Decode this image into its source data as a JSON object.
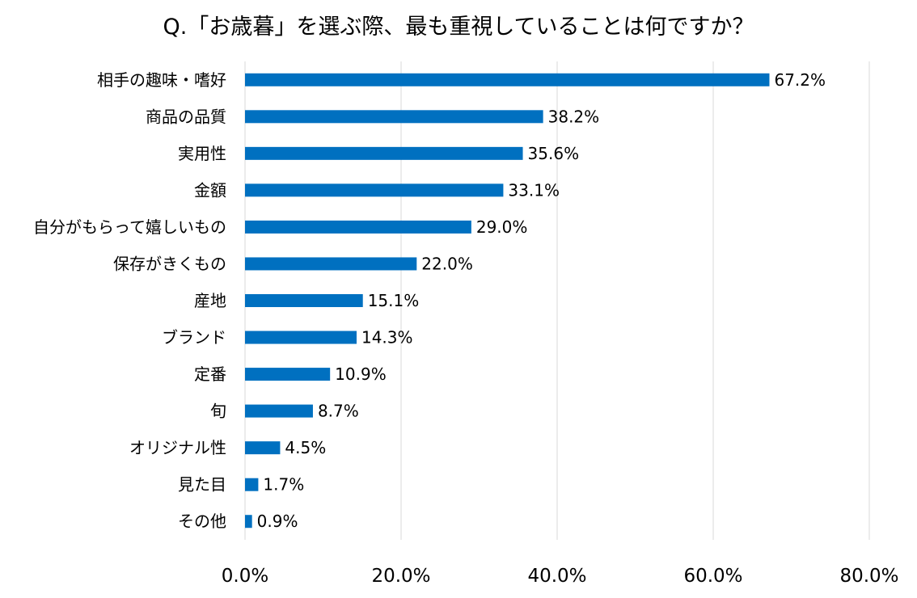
{
  "chart_data": {
    "type": "bar",
    "orientation": "horizontal",
    "title": "Q.「お歳暮」を選ぶ際、最も重視していることは何ですか？",
    "categories": [
      "相手の趣味・嗜好",
      "商品の品質",
      "実用性",
      "金額",
      "自分がもらって嬉しいもの",
      "保存がきくもの",
      "産地",
      "ブランド",
      "定番",
      "旬",
      "オリジナル性",
      "見た目",
      "その他"
    ],
    "values": [
      67.2,
      38.2,
      35.6,
      33.1,
      29.0,
      22.0,
      15.1,
      14.3,
      10.9,
      8.7,
      4.5,
      1.7,
      0.9
    ],
    "data_labels": [
      "67.2%",
      "38.2%",
      "35.6%",
      "33.1%",
      "29.0%",
      "22.0%",
      "15.1%",
      "14.3%",
      "10.9%",
      "8.7%",
      "4.5%",
      "1.7%",
      "0.9%"
    ],
    "x_ticks": [
      0,
      20,
      40,
      60,
      80
    ],
    "x_tick_labels": [
      "0.0%",
      "20.0%",
      "40.0%",
      "60.0%",
      "80.0%"
    ],
    "xlim": [
      0,
      80
    ],
    "xlabel": "",
    "ylabel": "",
    "grid": "vertical",
    "legend": "none",
    "bar_color": "#0070c0"
  }
}
